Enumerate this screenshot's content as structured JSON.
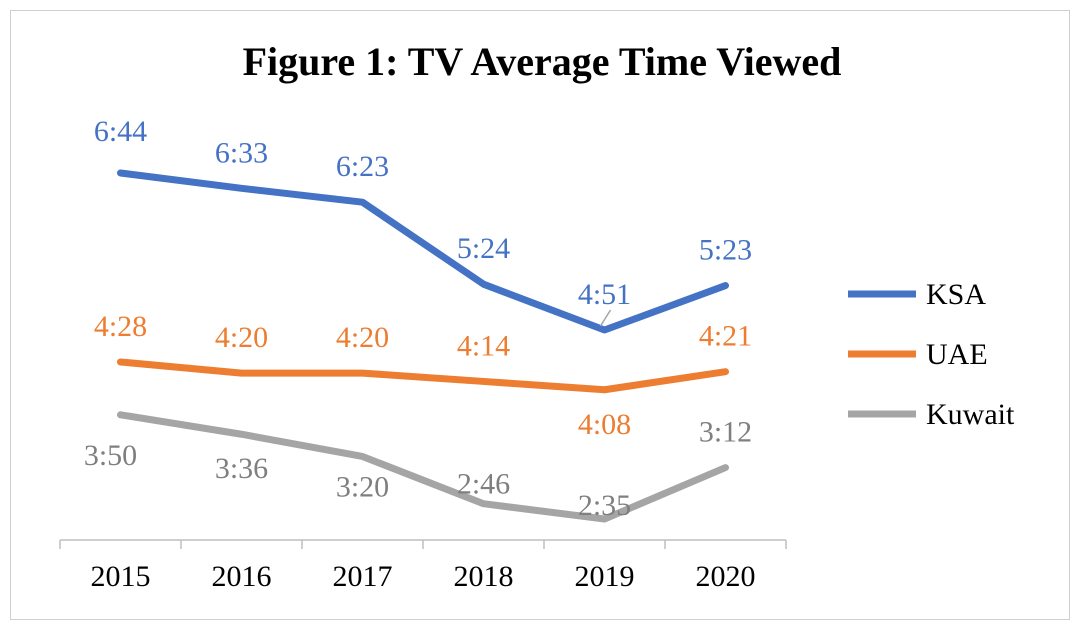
{
  "chart_data": {
    "type": "line",
    "title": "Figure 1: TV Average Time Viewed",
    "xlabel": "",
    "ylabel": "",
    "categories": [
      "2015",
      "2016",
      "2017",
      "2018",
      "2019",
      "2020"
    ],
    "value_unit": "minutes (hours:minutes shown in labels)",
    "ylim": [
      120,
      420
    ],
    "grid": false,
    "legend_position": "right",
    "series": [
      {
        "name": "KSA",
        "color": "#4472C4",
        "values": [
          404,
          393,
          383,
          324,
          291,
          323
        ],
        "labels": [
          "6:44",
          "6:33",
          "6:23",
          "5:24",
          "4:51",
          "5:23"
        ]
      },
      {
        "name": "UAE",
        "color": "#ED7D31",
        "values": [
          268,
          260,
          260,
          254,
          248,
          261
        ],
        "labels": [
          "4:28",
          "4:20",
          "4:20",
          "4:14",
          "4:08",
          "4:21"
        ]
      },
      {
        "name": "Kuwait",
        "color": "#A5A5A5",
        "values": [
          230,
          216,
          200,
          166,
          155,
          192
        ],
        "labels": [
          "3:50",
          "3:36",
          "3:20",
          "2:46",
          "2:35",
          "3:12"
        ]
      }
    ]
  }
}
